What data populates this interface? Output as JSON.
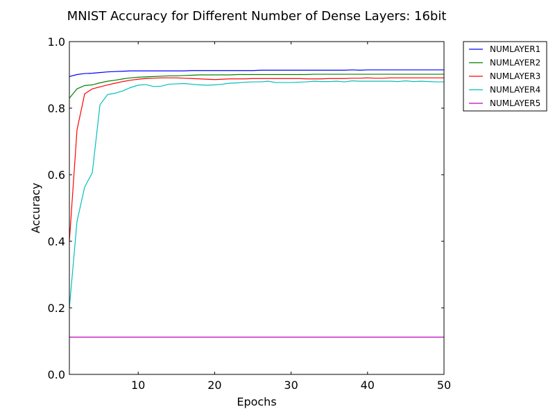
{
  "chart_data": {
    "type": "line",
    "title": "MNIST Accuracy for Different Number of Dense Layers: 16bit",
    "xlabel": "Epochs",
    "ylabel": "Accuracy",
    "xlim": [
      1,
      50
    ],
    "ylim": [
      0.0,
      1.0
    ],
    "xticks": [
      10,
      20,
      30,
      40,
      50
    ],
    "yticks": [
      0.0,
      0.2,
      0.4,
      0.6,
      0.8,
      1.0
    ],
    "x": [
      1,
      2,
      3,
      4,
      5,
      6,
      7,
      8,
      9,
      10,
      11,
      12,
      13,
      14,
      15,
      16,
      17,
      18,
      19,
      20,
      21,
      22,
      23,
      24,
      25,
      26,
      27,
      28,
      29,
      30,
      31,
      32,
      33,
      34,
      35,
      36,
      37,
      38,
      39,
      40,
      41,
      42,
      43,
      44,
      45,
      46,
      47,
      48,
      49,
      50
    ],
    "legend_position": "outside-top-right",
    "series": [
      {
        "name": "NUMLAYER1",
        "color": "#0000ff",
        "values": [
          0.895,
          0.901,
          0.904,
          0.905,
          0.907,
          0.909,
          0.91,
          0.911,
          0.912,
          0.912,
          0.912,
          0.912,
          0.912,
          0.912,
          0.912,
          0.912,
          0.913,
          0.913,
          0.913,
          0.913,
          0.913,
          0.913,
          0.913,
          0.913,
          0.913,
          0.914,
          0.914,
          0.914,
          0.914,
          0.914,
          0.914,
          0.914,
          0.914,
          0.914,
          0.914,
          0.914,
          0.914,
          0.915,
          0.914,
          0.915,
          0.915,
          0.915,
          0.915,
          0.915,
          0.915,
          0.915,
          0.915,
          0.915,
          0.915,
          0.915
        ]
      },
      {
        "name": "NUMLAYER2",
        "color": "#008000",
        "values": [
          0.83,
          0.858,
          0.868,
          0.87,
          0.876,
          0.881,
          0.884,
          0.888,
          0.891,
          0.893,
          0.894,
          0.895,
          0.896,
          0.897,
          0.897,
          0.898,
          0.899,
          0.9,
          0.9,
          0.9,
          0.9,
          0.9,
          0.901,
          0.901,
          0.901,
          0.901,
          0.901,
          0.901,
          0.901,
          0.901,
          0.901,
          0.901,
          0.902,
          0.902,
          0.902,
          0.902,
          0.902,
          0.902,
          0.902,
          0.902,
          0.902,
          0.902,
          0.902,
          0.902,
          0.902,
          0.902,
          0.902,
          0.902,
          0.902,
          0.902
        ]
      },
      {
        "name": "NUMLAYER3",
        "color": "#ff0000",
        "values": [
          0.4,
          0.735,
          0.843,
          0.858,
          0.864,
          0.87,
          0.875,
          0.88,
          0.884,
          0.887,
          0.889,
          0.89,
          0.891,
          0.891,
          0.891,
          0.89,
          0.889,
          0.888,
          0.887,
          0.886,
          0.887,
          0.888,
          0.888,
          0.888,
          0.889,
          0.889,
          0.889,
          0.889,
          0.889,
          0.889,
          0.889,
          0.888,
          0.888,
          0.888,
          0.889,
          0.889,
          0.889,
          0.89,
          0.89,
          0.891,
          0.89,
          0.89,
          0.891,
          0.891,
          0.891,
          0.891,
          0.891,
          0.891,
          0.891,
          0.891
        ]
      },
      {
        "name": "NUMLAYER4",
        "color": "#00bfbf",
        "values": [
          0.2,
          0.46,
          0.563,
          0.606,
          0.81,
          0.841,
          0.845,
          0.852,
          0.862,
          0.869,
          0.871,
          0.865,
          0.866,
          0.872,
          0.873,
          0.874,
          0.872,
          0.87,
          0.869,
          0.87,
          0.872,
          0.875,
          0.876,
          0.878,
          0.879,
          0.879,
          0.881,
          0.877,
          0.877,
          0.877,
          0.878,
          0.879,
          0.881,
          0.88,
          0.88,
          0.881,
          0.879,
          0.882,
          0.881,
          0.881,
          0.881,
          0.881,
          0.881,
          0.88,
          0.882,
          0.88,
          0.881,
          0.88,
          0.879,
          0.879
        ]
      },
      {
        "name": "NUMLAYER5",
        "color": "#bf00bf",
        "values": [
          0.112,
          0.112,
          0.112,
          0.112,
          0.112,
          0.112,
          0.112,
          0.112,
          0.112,
          0.112,
          0.112,
          0.112,
          0.112,
          0.112,
          0.112,
          0.112,
          0.112,
          0.112,
          0.112,
          0.112,
          0.112,
          0.112,
          0.112,
          0.112,
          0.112,
          0.112,
          0.112,
          0.112,
          0.112,
          0.112,
          0.112,
          0.112,
          0.112,
          0.112,
          0.112,
          0.112,
          0.112,
          0.112,
          0.112,
          0.112,
          0.112,
          0.112,
          0.112,
          0.112,
          0.112,
          0.112,
          0.112,
          0.112,
          0.112,
          0.112
        ]
      }
    ]
  }
}
